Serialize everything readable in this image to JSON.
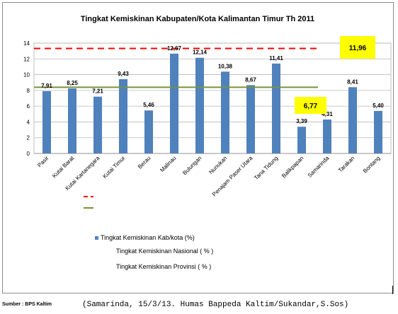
{
  "chart_data": {
    "type": "bar",
    "title": "Tingkat Kemiskinan Kabupaten/Kota Kalimantan Timur Th  2011",
    "categories": [
      "Pasir",
      "Kutai Barat",
      "Kutai Kartanegara",
      "Kutai Timur",
      "Berau",
      "Malinau",
      "Bulungan",
      "Nunukan",
      "Penajam Paser Utara",
      "Tana Tidung",
      "Balikpapan",
      "Samarinda",
      "Tarakan",
      "Bontang"
    ],
    "values": [
      7.91,
      8.25,
      7.21,
      9.43,
      5.46,
      12.67,
      12.14,
      10.38,
      8.67,
      11.41,
      3.39,
      4.31,
      8.41,
      5.4
    ],
    "value_labels": [
      "7,91",
      "8,25",
      "7,21",
      "9,43",
      "5,46",
      "12,67",
      "12,14",
      "10,38",
      "8,67",
      "11,41",
      "3,39",
      "4,31",
      "8,41",
      "5,40"
    ],
    "ylim": [
      0,
      14
    ],
    "yticks": [
      0,
      2,
      4,
      6,
      8,
      10,
      12,
      14
    ],
    "grid": true,
    "bar_color": "#4f81bd",
    "reference_lines": [
      {
        "name": "Tingkat Kemiskinan  Nasional   ( % )",
        "value": 13.33,
        "color": "#ff0000",
        "style": "dashed"
      },
      {
        "name": "Tingkat Kemiskinan  Provinsi   ( % )",
        "value": 8.4,
        "color": "#77933c",
        "style": "solid"
      }
    ],
    "callouts": [
      {
        "label": "11,96",
        "color": "#ffff00"
      },
      {
        "label": "6,77",
        "color": "#ffff00"
      }
    ],
    "legend": {
      "placement": "bottom-left",
      "bar_series": "Tingkat Kemiskinan Kab/kota (%)"
    }
  },
  "footer": {
    "source": "Sumber : BPS Kaltim",
    "credit": "(Samarinda, 15/3/13. Humas Bappeda Kaltim/Sukandar,S.Sos)"
  }
}
